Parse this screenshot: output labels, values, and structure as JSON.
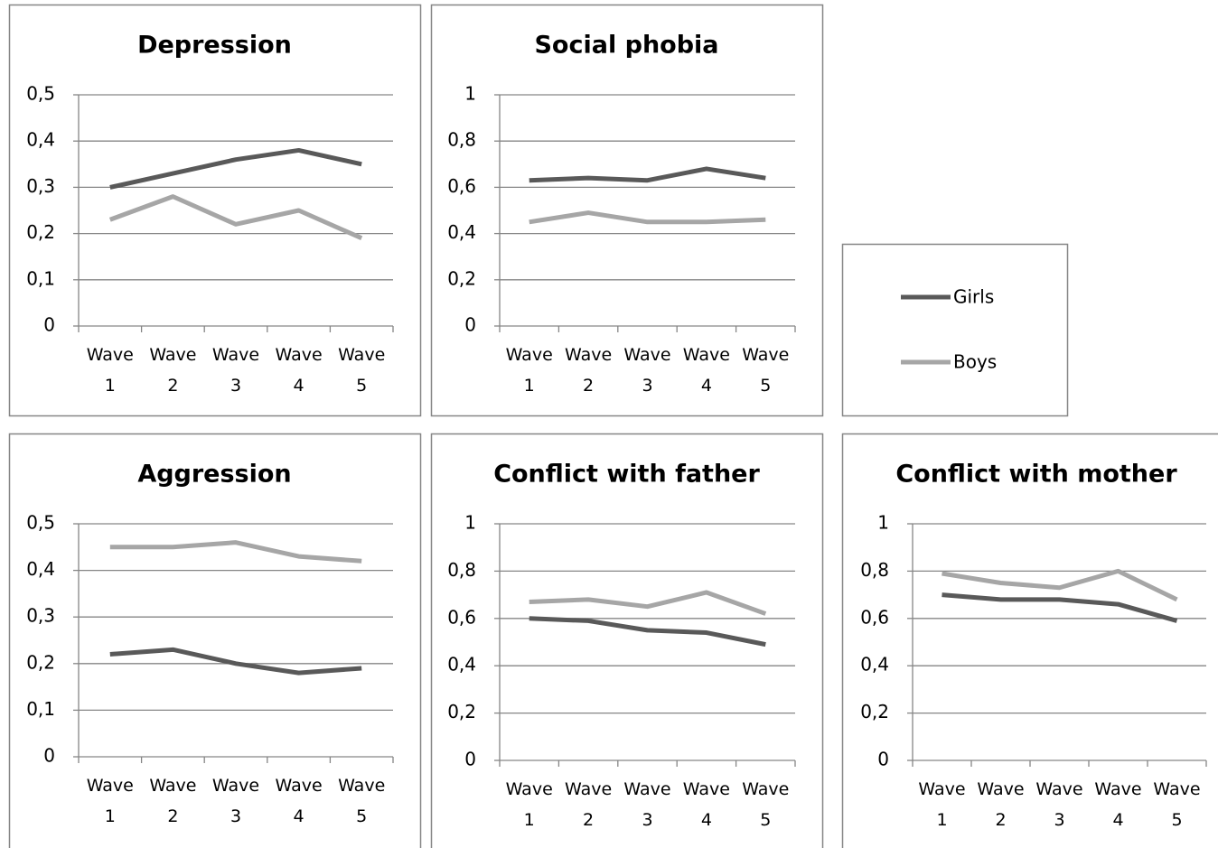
{
  "chart_data": [
    {
      "type": "line",
      "title": "Depression",
      "categories": [
        "Wave 1",
        "Wave 2",
        "Wave 3",
        "Wave 4",
        "Wave 5"
      ],
      "series": [
        {
          "name": "Girls",
          "color": "#595959",
          "values": [
            0.3,
            0.33,
            0.36,
            0.38,
            0.35
          ]
        },
        {
          "name": "Boys",
          "color": "#a6a6a6",
          "values": [
            0.23,
            0.28,
            0.22,
            0.25,
            0.19
          ]
        }
      ],
      "ylim": [
        0,
        0.5
      ],
      "yticks": [
        0,
        {
          "value": 0.1,
          "label": "0,1"
        },
        {
          "value": 0.2,
          "label": "0,2"
        },
        {
          "value": 0.3,
          "label": "0,3"
        },
        {
          "value": 0.4,
          "label": "0,4"
        },
        {
          "value": 0.5,
          "label": "0,5"
        }
      ],
      "grid": true
    },
    {
      "type": "line",
      "title": "Social phobia",
      "categories": [
        "Wave 1",
        "Wave 2",
        "Wave 3",
        "Wave 4",
        "Wave 5"
      ],
      "series": [
        {
          "name": "Girls",
          "color": "#595959",
          "values": [
            0.63,
            0.64,
            0.63,
            0.68,
            0.64
          ]
        },
        {
          "name": "Boys",
          "color": "#a6a6a6",
          "values": [
            0.45,
            0.49,
            0.45,
            0.45,
            0.46
          ]
        }
      ],
      "ylim": [
        0,
        1
      ],
      "yticks": [
        0,
        {
          "value": 0.2,
          "label": "0,2"
        },
        {
          "value": 0.4,
          "label": "0,4"
        },
        {
          "value": 0.6,
          "label": "0,6"
        },
        {
          "value": 0.8,
          "label": "0,8"
        },
        1
      ],
      "grid": true
    },
    {
      "type": "line",
      "title": "Aggression",
      "categories": [
        "Wave 1",
        "Wave 2",
        "Wave 3",
        "Wave 4",
        "Wave 5"
      ],
      "series": [
        {
          "name": "Girls",
          "color": "#595959",
          "values": [
            0.22,
            0.23,
            0.2,
            0.18,
            0.19
          ]
        },
        {
          "name": "Boys",
          "color": "#a6a6a6",
          "values": [
            0.45,
            0.45,
            0.46,
            0.43,
            0.42
          ]
        }
      ],
      "ylim": [
        0,
        0.5
      ],
      "yticks": [
        0,
        {
          "value": 0.1,
          "label": "0,1"
        },
        {
          "value": 0.2,
          "label": "0,2"
        },
        {
          "value": 0.3,
          "label": "0,3"
        },
        {
          "value": 0.4,
          "label": "0,4"
        },
        {
          "value": 0.5,
          "label": "0,5"
        }
      ],
      "grid": true
    },
    {
      "type": "line",
      "title": "Conflict with father",
      "categories": [
        "Wave 1",
        "Wave 2",
        "Wave 3",
        "Wave 4",
        "Wave 5"
      ],
      "series": [
        {
          "name": "Girls",
          "color": "#595959",
          "values": [
            0.6,
            0.59,
            0.55,
            0.54,
            0.49
          ]
        },
        {
          "name": "Boys",
          "color": "#a6a6a6",
          "values": [
            0.67,
            0.68,
            0.65,
            0.71,
            0.62
          ]
        }
      ],
      "ylim": [
        0,
        1
      ],
      "yticks": [
        0,
        {
          "value": 0.2,
          "label": "0,2"
        },
        {
          "value": 0.4,
          "label": "0,4"
        },
        {
          "value": 0.6,
          "label": "0,6"
        },
        {
          "value": 0.8,
          "label": "0,8"
        },
        1
      ],
      "grid": true
    },
    {
      "type": "line",
      "title": "Conflict with mother",
      "categories": [
        "Wave 1",
        "Wave 2",
        "Wave 3",
        "Wave 4",
        "Wave 5"
      ],
      "series": [
        {
          "name": "Girls",
          "color": "#595959",
          "values": [
            0.7,
            0.68,
            0.68,
            0.66,
            0.59
          ]
        },
        {
          "name": "Boys",
          "color": "#a6a6a6",
          "values": [
            0.79,
            0.75,
            0.73,
            0.8,
            0.68
          ]
        }
      ],
      "ylim": [
        0,
        1
      ],
      "yticks": [
        0,
        {
          "value": 0.2,
          "label": "0,2"
        },
        {
          "value": 0.4,
          "label": "0,4"
        },
        {
          "value": 0.6,
          "label": "0,6"
        },
        {
          "value": 0.8,
          "label": "0,8"
        },
        1
      ],
      "grid": true
    }
  ]
}
